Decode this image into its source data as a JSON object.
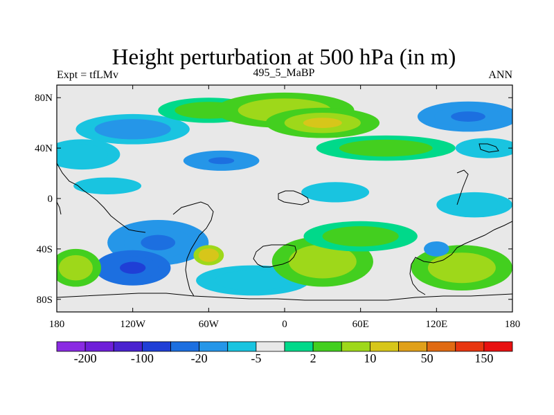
{
  "chart_data": {
    "type": "heatmap",
    "title": "Height perturbation at 500 hPa (in m)",
    "left_string": "Expt = tfLMv",
    "center_string": "495_5_MaBP",
    "right_string": "ANN",
    "x_range": [
      -180,
      180
    ],
    "y_range": [
      -90,
      90
    ],
    "x_ticks": [
      {
        "value": -180,
        "label": "180"
      },
      {
        "value": -120,
        "label": "120W"
      },
      {
        "value": -60,
        "label": "60W"
      },
      {
        "value": 0,
        "label": "0"
      },
      {
        "value": 60,
        "label": "60E"
      },
      {
        "value": 120,
        "label": "120E"
      },
      {
        "value": 180,
        "label": "180"
      }
    ],
    "y_ticks": [
      {
        "value": 80,
        "label": "80N"
      },
      {
        "value": 40,
        "label": "40N"
      },
      {
        "value": 0,
        "label": "0"
      },
      {
        "value": -40,
        "label": "40S"
      },
      {
        "value": -80,
        "label": "80S"
      }
    ],
    "colorbar": {
      "colors": [
        "#8a2be2",
        "#6f1fd9",
        "#4a22cf",
        "#1f3fd6",
        "#1c6fe0",
        "#2596e8",
        "#19c4e0",
        "#e8e8e8",
        "#00d98a",
        "#43cf1f",
        "#9ed81a",
        "#d7c61a",
        "#e0a01a",
        "#e06a12",
        "#e8360f",
        "#e81010"
      ],
      "labels": [
        {
          "text": "-200",
          "boundary": 1
        },
        {
          "text": "-100",
          "boundary": 3
        },
        {
          "text": "-20",
          "boundary": 5
        },
        {
          "text": "-5",
          "boundary": 7
        },
        {
          "text": "2",
          "boundary": 9
        },
        {
          "text": "10",
          "boundary": 11
        },
        {
          "text": "50",
          "boundary": 13
        },
        {
          "text": "150",
          "boundary": 15
        }
      ]
    },
    "field_blobs": [
      {
        "lon": -120,
        "lat": 55,
        "rlon": 45,
        "rlat": 12,
        "amp": -12
      },
      {
        "lon": -160,
        "lat": 35,
        "rlon": 30,
        "rlat": 12,
        "amp": -8
      },
      {
        "lon": -50,
        "lat": 30,
        "rlon": 30,
        "rlat": 8,
        "amp": -25
      },
      {
        "lon": -60,
        "lat": 70,
        "rlon": 40,
        "rlat": 10,
        "amp": 12
      },
      {
        "lon": 0,
        "lat": 70,
        "rlon": 55,
        "rlat": 14,
        "amp": 18
      },
      {
        "lon": 30,
        "lat": 60,
        "rlon": 45,
        "rlat": 12,
        "amp": 30
      },
      {
        "lon": 80,
        "lat": 40,
        "rlon": 55,
        "rlat": 10,
        "amp": 12
      },
      {
        "lon": 145,
        "lat": 65,
        "rlon": 40,
        "rlat": 12,
        "amp": -30
      },
      {
        "lon": 160,
        "lat": 40,
        "rlon": 25,
        "rlat": 8,
        "amp": -6
      },
      {
        "lon": -140,
        "lat": 10,
        "rlon": 40,
        "rlat": 10,
        "amp": -4
      },
      {
        "lon": 40,
        "lat": 5,
        "rlon": 40,
        "rlat": 12,
        "amp": -4
      },
      {
        "lon": 150,
        "lat": -5,
        "rlon": 30,
        "rlat": 10,
        "amp": -6
      },
      {
        "lon": -100,
        "lat": -35,
        "rlon": 40,
        "rlat": 18,
        "amp": -30
      },
      {
        "lon": -120,
        "lat": -55,
        "rlon": 30,
        "rlat": 14,
        "amp": -60
      },
      {
        "lon": -60,
        "lat": -45,
        "rlon": 12,
        "rlat": 8,
        "amp": 40
      },
      {
        "lon": -25,
        "lat": -65,
        "rlon": 45,
        "rlat": 12,
        "amp": -8
      },
      {
        "lon": 30,
        "lat": -50,
        "rlon": 40,
        "rlat": 20,
        "amp": 25
      },
      {
        "lon": 60,
        "lat": -30,
        "rlon": 45,
        "rlat": 12,
        "amp": 12
      },
      {
        "lon": 140,
        "lat": -55,
        "rlon": 40,
        "rlat": 18,
        "amp": 20
      },
      {
        "lon": 120,
        "lat": -40,
        "rlon": 10,
        "rlat": 6,
        "amp": -20
      },
      {
        "lon": -165,
        "lat": -55,
        "rlon": 20,
        "rlat": 15,
        "amp": 25
      }
    ]
  }
}
